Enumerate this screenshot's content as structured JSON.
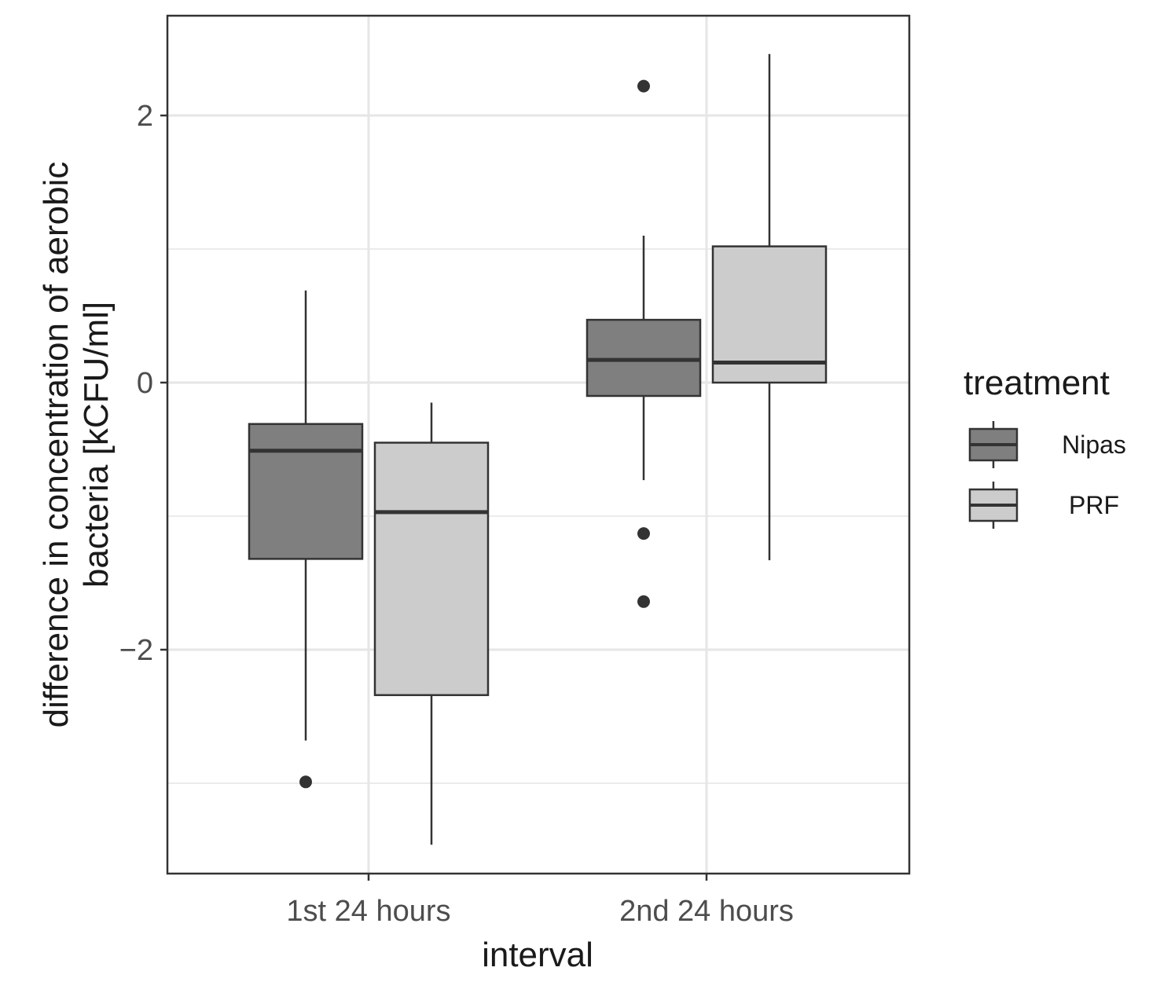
{
  "chart_data": {
    "type": "boxplot",
    "title": "",
    "xlabel": "interval",
    "ylabel_lines": [
      "difference in concentration of aerobic",
      "bacteria [kCFU/ml]"
    ],
    "categories": [
      "1st 24 hours",
      "2nd 24 hours"
    ],
    "ylim": [
      -3.75,
      2.75
    ],
    "yticks": [
      -2,
      0,
      2
    ],
    "ytick_labels": [
      "−2",
      "0",
      "2"
    ],
    "grid": true,
    "legend": {
      "title": "treatment",
      "position": "right",
      "entries": [
        "Nipas",
        "PRF"
      ]
    },
    "series": [
      {
        "name": "Nipas",
        "color": "#7f7f7f",
        "boxes": [
          {
            "category": "1st 24 hours",
            "whisker_low": -2.68,
            "q1": -1.32,
            "median": -0.51,
            "q3": -0.31,
            "whisker_high": 0.69,
            "outliers": [
              -2.99
            ]
          },
          {
            "category": "2nd 24 hours",
            "whisker_low": -0.73,
            "q1": -0.1,
            "median": 0.17,
            "q3": 0.47,
            "whisker_high": 1.1,
            "outliers": [
              2.22,
              -1.13,
              -1.64
            ]
          }
        ]
      },
      {
        "name": "PRF",
        "color": "#cccccc",
        "boxes": [
          {
            "category": "1st 24 hours",
            "whisker_low": -3.46,
            "q1": -2.34,
            "median": -0.97,
            "q3": -0.45,
            "whisker_high": -0.15,
            "outliers": []
          },
          {
            "category": "2nd 24 hours",
            "whisker_low": -1.33,
            "q1": 0.0,
            "median": 0.15,
            "q3": 1.02,
            "whisker_high": 2.46,
            "outliers": []
          }
        ]
      }
    ]
  }
}
